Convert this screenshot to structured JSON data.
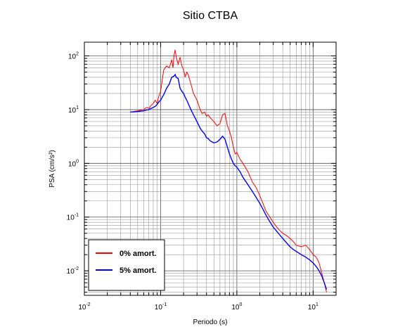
{
  "chart_data": {
    "type": "line",
    "title": "Sitio CTBA",
    "xlabel": "Periodo (s)",
    "ylabel": "PSA (cm/s²)",
    "xscale": "log",
    "yscale": "log",
    "xlim": [
      0.01,
      20
    ],
    "ylim": [
      0.0035,
      180
    ],
    "grid": true,
    "legend_position": "bottom-left",
    "x_tick_labels": [
      {
        "value": 0.01,
        "base": "10",
        "exp": "-2"
      },
      {
        "value": 0.1,
        "base": "10",
        "exp": "-1"
      },
      {
        "value": 1,
        "base": "10",
        "exp": "0"
      },
      {
        "value": 10,
        "base": "10",
        "exp": "1"
      }
    ],
    "y_tick_labels": [
      {
        "value": 0.01,
        "base": "10",
        "exp": "-2"
      },
      {
        "value": 0.1,
        "base": "10",
        "exp": "-1"
      },
      {
        "value": 1,
        "base": "10",
        "exp": "0"
      },
      {
        "value": 10,
        "base": "10",
        "exp": "1"
      },
      {
        "value": 100,
        "base": "10",
        "exp": "2"
      }
    ],
    "series": [
      {
        "name": "0% amort.",
        "color": "#ff0000",
        "points": [
          [
            0.04,
            9.0
          ],
          [
            0.05,
            9.5
          ],
          [
            0.06,
            10.0
          ],
          [
            0.065,
            11.0
          ],
          [
            0.07,
            10.5
          ],
          [
            0.075,
            12.0
          ],
          [
            0.08,
            13.0
          ],
          [
            0.085,
            15.0
          ],
          [
            0.09,
            13.0
          ],
          [
            0.095,
            18.0
          ],
          [
            0.1,
            22.0
          ],
          [
            0.105,
            35.0
          ],
          [
            0.11,
            55.0
          ],
          [
            0.12,
            65.0
          ],
          [
            0.13,
            60.0
          ],
          [
            0.14,
            85.0
          ],
          [
            0.145,
            60.0
          ],
          [
            0.15,
            100.0
          ],
          [
            0.155,
            130.0
          ],
          [
            0.16,
            95.0
          ],
          [
            0.17,
            70.0
          ],
          [
            0.18,
            95.0
          ],
          [
            0.19,
            65.0
          ],
          [
            0.2,
            55.0
          ],
          [
            0.21,
            40.0
          ],
          [
            0.22,
            50.0
          ],
          [
            0.23,
            45.0
          ],
          [
            0.25,
            30.0
          ],
          [
            0.27,
            20.0
          ],
          [
            0.3,
            15.0
          ],
          [
            0.33,
            10.0
          ],
          [
            0.35,
            8.5
          ],
          [
            0.38,
            9.0
          ],
          [
            0.4,
            7.5
          ],
          [
            0.42,
            8.0
          ],
          [
            0.45,
            7.0
          ],
          [
            0.5,
            6.0
          ],
          [
            0.55,
            5.0
          ],
          [
            0.6,
            5.5
          ],
          [
            0.65,
            8.0
          ],
          [
            0.7,
            8.5
          ],
          [
            0.75,
            5.0
          ],
          [
            0.8,
            4.0
          ],
          [
            0.85,
            3.0
          ],
          [
            0.9,
            2.0
          ],
          [
            0.95,
            1.5
          ],
          [
            1.0,
            1.6
          ],
          [
            1.1,
            1.2
          ],
          [
            1.2,
            1.0
          ],
          [
            1.4,
            0.7
          ],
          [
            1.6,
            0.45
          ],
          [
            1.8,
            0.35
          ],
          [
            2.0,
            0.25
          ],
          [
            2.2,
            0.18
          ],
          [
            2.4,
            0.13
          ],
          [
            2.6,
            0.11
          ],
          [
            3.0,
            0.08
          ],
          [
            3.5,
            0.06
          ],
          [
            4.0,
            0.05
          ],
          [
            4.5,
            0.045
          ],
          [
            5.0,
            0.04
          ],
          [
            5.5,
            0.035
          ],
          [
            6.0,
            0.03
          ],
          [
            7.0,
            0.028
          ],
          [
            8.0,
            0.03
          ],
          [
            9.0,
            0.025
          ],
          [
            10.0,
            0.02
          ],
          [
            11.0,
            0.018
          ],
          [
            12.0,
            0.014
          ],
          [
            13.0,
            0.009
          ],
          [
            14.0,
            0.006
          ],
          [
            15.0,
            0.004
          ]
        ]
      },
      {
        "name": "5% amort.",
        "color": "#0000ff",
        "points": [
          [
            0.04,
            9.0
          ],
          [
            0.05,
            9.2
          ],
          [
            0.06,
            9.5
          ],
          [
            0.065,
            9.8
          ],
          [
            0.07,
            10.0
          ],
          [
            0.075,
            10.5
          ],
          [
            0.08,
            11.0
          ],
          [
            0.085,
            11.5
          ],
          [
            0.09,
            12.5
          ],
          [
            0.095,
            14.0
          ],
          [
            0.1,
            15.0
          ],
          [
            0.105,
            17.0
          ],
          [
            0.11,
            19.0
          ],
          [
            0.12,
            25.0
          ],
          [
            0.13,
            30.0
          ],
          [
            0.14,
            40.0
          ],
          [
            0.15,
            42.0
          ],
          [
            0.155,
            45.0
          ],
          [
            0.16,
            40.0
          ],
          [
            0.17,
            38.0
          ],
          [
            0.18,
            25.0
          ],
          [
            0.19,
            22.0
          ],
          [
            0.2,
            20.0
          ],
          [
            0.21,
            17.0
          ],
          [
            0.22,
            15.0
          ],
          [
            0.23,
            13.0
          ],
          [
            0.25,
            10.0
          ],
          [
            0.27,
            8.0
          ],
          [
            0.3,
            6.0
          ],
          [
            0.33,
            4.5
          ],
          [
            0.35,
            4.0
          ],
          [
            0.38,
            3.5
          ],
          [
            0.4,
            3.0
          ],
          [
            0.42,
            2.9
          ],
          [
            0.45,
            2.6
          ],
          [
            0.5,
            2.4
          ],
          [
            0.55,
            2.5
          ],
          [
            0.6,
            2.8
          ],
          [
            0.65,
            3.2
          ],
          [
            0.7,
            2.8
          ],
          [
            0.75,
            2.0
          ],
          [
            0.8,
            1.5
          ],
          [
            0.85,
            1.2
          ],
          [
            0.9,
            1.0
          ],
          [
            0.95,
            0.9
          ],
          [
            1.0,
            0.85
          ],
          [
            1.1,
            0.7
          ],
          [
            1.2,
            0.55
          ],
          [
            1.4,
            0.4
          ],
          [
            1.6,
            0.3
          ],
          [
            1.8,
            0.23
          ],
          [
            2.0,
            0.18
          ],
          [
            2.2,
            0.14
          ],
          [
            2.4,
            0.11
          ],
          [
            2.6,
            0.09
          ],
          [
            3.0,
            0.065
          ],
          [
            3.5,
            0.05
          ],
          [
            4.0,
            0.04
          ],
          [
            4.5,
            0.033
          ],
          [
            5.0,
            0.028
          ],
          [
            5.5,
            0.025
          ],
          [
            6.0,
            0.023
          ],
          [
            7.0,
            0.02
          ],
          [
            8.0,
            0.018
          ],
          [
            9.0,
            0.016
          ],
          [
            10.0,
            0.014
          ],
          [
            11.0,
            0.012
          ],
          [
            12.0,
            0.01
          ],
          [
            13.0,
            0.008
          ],
          [
            14.0,
            0.006
          ],
          [
            15.0,
            0.0045
          ]
        ]
      }
    ]
  }
}
